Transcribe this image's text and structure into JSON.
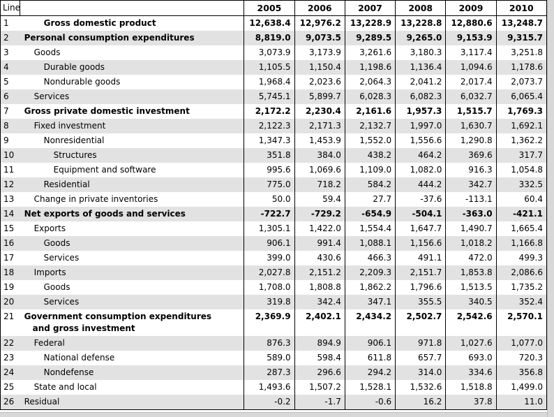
{
  "colors": {
    "row_shade": "#e2e2e2",
    "table_border": "#000000",
    "scrollbar_track": "#d8d8d8"
  },
  "chart_data": {
    "type": "table",
    "line_column_header": "Line",
    "year_columns": [
      "2005",
      "2006",
      "2007",
      "2008",
      "2009",
      "2010"
    ],
    "rows": [
      {
        "line": "1",
        "label": "Gross domestic product",
        "indent": 2,
        "bold": true,
        "values": [
          "12,638.4",
          "12,976.2",
          "13,228.9",
          "13,228.8",
          "12,880.6",
          "13,248.7"
        ]
      },
      {
        "line": "2",
        "label": "Personal consumption expenditures",
        "indent": 0,
        "bold": true,
        "values": [
          "8,819.0",
          "9,073.5",
          "9,289.5",
          "9,265.0",
          "9,153.9",
          "9,315.7"
        ]
      },
      {
        "line": "3",
        "label": "Goods",
        "indent": 1,
        "bold": false,
        "values": [
          "3,073.9",
          "3,173.9",
          "3,261.6",
          "3,180.3",
          "3,117.4",
          "3,251.8"
        ]
      },
      {
        "line": "4",
        "label": "Durable goods",
        "indent": 2,
        "bold": false,
        "values": [
          "1,105.5",
          "1,150.4",
          "1,198.6",
          "1,136.4",
          "1,094.6",
          "1,178.6"
        ]
      },
      {
        "line": "5",
        "label": "Nondurable goods",
        "indent": 2,
        "bold": false,
        "values": [
          "1,968.4",
          "2,023.6",
          "2,064.3",
          "2,041.2",
          "2,017.4",
          "2,073.7"
        ]
      },
      {
        "line": "6",
        "label": "Services",
        "indent": 1,
        "bold": false,
        "values": [
          "5,745.1",
          "5,899.7",
          "6,028.3",
          "6,082.3",
          "6,032.7",
          "6,065.4"
        ]
      },
      {
        "line": "7",
        "label": "Gross private domestic investment",
        "indent": 0,
        "bold": true,
        "values": [
          "2,172.2",
          "2,230.4",
          "2,161.6",
          "1,957.3",
          "1,515.7",
          "1,769.3"
        ]
      },
      {
        "line": "8",
        "label": "Fixed investment",
        "indent": 1,
        "bold": false,
        "values": [
          "2,122.3",
          "2,171.3",
          "2,132.7",
          "1,997.0",
          "1,630.7",
          "1,692.1"
        ]
      },
      {
        "line": "9",
        "label": "Nonresidential",
        "indent": 2,
        "bold": false,
        "values": [
          "1,347.3",
          "1,453.9",
          "1,552.0",
          "1,556.6",
          "1,290.8",
          "1,362.2"
        ]
      },
      {
        "line": "10",
        "label": "Structures",
        "indent": 3,
        "bold": false,
        "values": [
          "351.8",
          "384.0",
          "438.2",
          "464.2",
          "369.6",
          "317.7"
        ]
      },
      {
        "line": "11",
        "label": "Equipment and software",
        "indent": 3,
        "bold": false,
        "values": [
          "995.6",
          "1,069.6",
          "1,109.0",
          "1,082.0",
          "916.3",
          "1,054.8"
        ]
      },
      {
        "line": "12",
        "label": "Residential",
        "indent": 2,
        "bold": false,
        "values": [
          "775.0",
          "718.2",
          "584.2",
          "444.2",
          "342.7",
          "332.5"
        ]
      },
      {
        "line": "13",
        "label": "Change in private inventories",
        "indent": 1,
        "bold": false,
        "values": [
          "50.0",
          "59.4",
          "27.7",
          "-37.6",
          "-113.1",
          "60.4"
        ]
      },
      {
        "line": "14",
        "label": "Net exports of goods and services",
        "indent": 0,
        "bold": true,
        "values": [
          "-722.7",
          "-729.2",
          "-654.9",
          "-504.1",
          "-363.0",
          "-421.1"
        ]
      },
      {
        "line": "15",
        "label": "Exports",
        "indent": 1,
        "bold": false,
        "values": [
          "1,305.1",
          "1,422.0",
          "1,554.4",
          "1,647.7",
          "1,490.7",
          "1,665.4"
        ]
      },
      {
        "line": "16",
        "label": "Goods",
        "indent": 2,
        "bold": false,
        "values": [
          "906.1",
          "991.4",
          "1,088.1",
          "1,156.6",
          "1,018.2",
          "1,166.8"
        ]
      },
      {
        "line": "17",
        "label": "Services",
        "indent": 2,
        "bold": false,
        "values": [
          "399.0",
          "430.6",
          "466.3",
          "491.1",
          "472.0",
          "499.3"
        ]
      },
      {
        "line": "18",
        "label": "Imports",
        "indent": 1,
        "bold": false,
        "values": [
          "2,027.8",
          "2,151.2",
          "2,209.3",
          "2,151.7",
          "1,853.8",
          "2,086.6"
        ]
      },
      {
        "line": "19",
        "label": "Goods",
        "indent": 2,
        "bold": false,
        "values": [
          "1,708.0",
          "1,808.8",
          "1,862.2",
          "1,796.6",
          "1,513.5",
          "1,735.2"
        ]
      },
      {
        "line": "20",
        "label": "Services",
        "indent": 2,
        "bold": false,
        "values": [
          "319.8",
          "342.4",
          "347.1",
          "355.5",
          "340.5",
          "352.4"
        ]
      },
      {
        "line": "21",
        "label": "Government consumption expenditures\nand gross investment",
        "indent": 0,
        "bold": true,
        "values": [
          "2,369.9",
          "2,402.1",
          "2,434.2",
          "2,502.7",
          "2,542.6",
          "2,570.1"
        ]
      },
      {
        "line": "22",
        "label": "Federal",
        "indent": 1,
        "bold": false,
        "values": [
          "876.3",
          "894.9",
          "906.1",
          "971.8",
          "1,027.6",
          "1,077.0"
        ]
      },
      {
        "line": "23",
        "label": "National defense",
        "indent": 2,
        "bold": false,
        "values": [
          "589.0",
          "598.4",
          "611.8",
          "657.7",
          "693.0",
          "720.3"
        ]
      },
      {
        "line": "24",
        "label": "Nondefense",
        "indent": 2,
        "bold": false,
        "values": [
          "287.3",
          "296.6",
          "294.2",
          "314.0",
          "334.6",
          "356.8"
        ]
      },
      {
        "line": "25",
        "label": "State and local",
        "indent": 1,
        "bold": false,
        "values": [
          "1,493.6",
          "1,507.2",
          "1,528.1",
          "1,532.6",
          "1,518.8",
          "1,499.0"
        ]
      },
      {
        "line": "26",
        "label": "Residual",
        "indent": 0,
        "bold": false,
        "values": [
          "-0.2",
          "-1.7",
          "-0.6",
          "16.2",
          "37.8",
          "11.0"
        ]
      }
    ]
  }
}
